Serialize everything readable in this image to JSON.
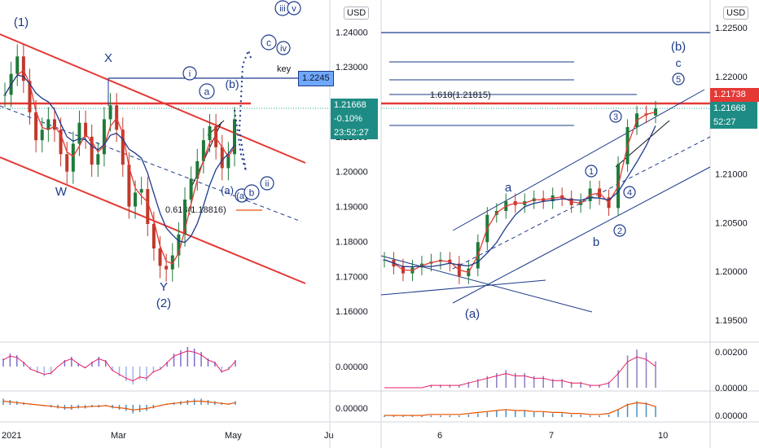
{
  "currency_label": "USD",
  "left_panel": {
    "price_ticks": [
      "1.24000",
      "1.23000",
      "1.22000",
      "1.21000",
      "1.20000",
      "1.19000",
      "1.18000",
      "1.17000",
      "1.16000"
    ],
    "price_ticks_values": [
      1.24,
      1.23,
      1.22,
      1.21,
      1.2,
      1.19,
      1.18,
      1.17,
      1.16
    ],
    "ylim": [
      1.157,
      1.2445
    ],
    "time_ticks": [
      "2021",
      "Mar",
      "May",
      "Ju"
    ],
    "macd_tick": "0.00000",
    "ao_tick": "0.00000",
    "wave_labels": [
      "(1)",
      "X",
      "W",
      "Y",
      "(2)",
      "a",
      "(b)",
      "(a)",
      "(a)",
      "b",
      "c",
      "iii",
      "iv",
      "v",
      "i",
      "ii"
    ],
    "key_label": "key",
    "key_level": "1.2245",
    "fib_label": "0.618(1.18816)",
    "current_price": "1.21668",
    "change": "-0.10%",
    "countdown": "23:52:27",
    "accent_colors": {
      "candle": "#1f7a3a",
      "down": "#c0392b",
      "channel": "#e53935",
      "fast_ma": "#e53935",
      "slow_ma": "#1e3a8a",
      "price_tag": "#1e8c85",
      "key_tag": "#6fa8ff"
    }
  },
  "right_panel": {
    "price_ticks": [
      "1.22500",
      "1.22000",
      "1.21738",
      "1.21668",
      "1.21000",
      "1.20500",
      "1.20000",
      "1.19500"
    ],
    "price_ticks_values": [
      1.225,
      1.22,
      1.21738,
      1.21668,
      1.21,
      1.205,
      1.2,
      1.195
    ],
    "ylim": [
      1.1935,
      1.2265
    ],
    "time_ticks": [
      "6",
      "7",
      "10"
    ],
    "macd_ticks": [
      "0.00200",
      "0.00000"
    ],
    "ao_tick": "0.00000",
    "fib_label": "1.618(1.21815)",
    "red_level_tag": "1.21738",
    "current_price": "1.21668",
    "countdown": "52:27",
    "wave_labels": [
      "(b)",
      "c",
      "5",
      "3",
      "1",
      "4",
      "2",
      "a",
      "b",
      "(a)"
    ]
  },
  "chart_data": [
    {
      "type": "line",
      "title": "",
      "xlabel": "",
      "ylabel": "USD",
      "x_ticks": [
        "2021",
        "Mar",
        "May",
        "Ju"
      ],
      "ylim": [
        1.157,
        1.2445
      ],
      "series": [
        {
          "values": [
            1.222,
            1.228,
            1.233,
            1.226,
            1.217,
            1.209,
            1.212,
            1.215,
            1.212,
            1.205,
            1.2,
            1.208,
            1.214,
            1.21,
            1.202,
            1.205,
            1.215,
            1.219,
            1.212,
            1.202,
            1.19,
            1.194,
            1.195,
            1.185,
            1.178,
            1.173,
            1.172,
            1.176,
            1.182,
            1.192,
            1.198,
            1.203,
            1.209,
            1.213,
            1.207,
            1.201,
            1.205,
            1.215
          ]
        }
      ],
      "levels": {
        "key": 1.2245,
        "fib_0618": 1.18816,
        "last": 1.21668
      }
    },
    {
      "type": "line",
      "title": "",
      "xlabel": "",
      "ylabel": "USD",
      "x_ticks": [
        "6",
        "7",
        "10"
      ],
      "ylim": [
        1.1935,
        1.2265
      ],
      "series": [
        {
          "values": [
            1.2012,
            1.2005,
            1.1998,
            1.2004,
            1.2008,
            1.201,
            1.2012,
            1.2008,
            1.1995,
            1.2003,
            1.203,
            1.2058,
            1.2062,
            1.2072,
            1.2068,
            1.2072,
            1.2075,
            1.2072,
            1.2078,
            1.2075,
            1.2068,
            1.2072,
            1.2085,
            1.2076,
            1.2065,
            1.211,
            1.2148,
            1.2162,
            1.216,
            1.2167
          ]
        }
      ],
      "levels": {
        "fib_1618": 1.21815,
        "red": 1.21738,
        "last": 1.21668
      }
    }
  ]
}
